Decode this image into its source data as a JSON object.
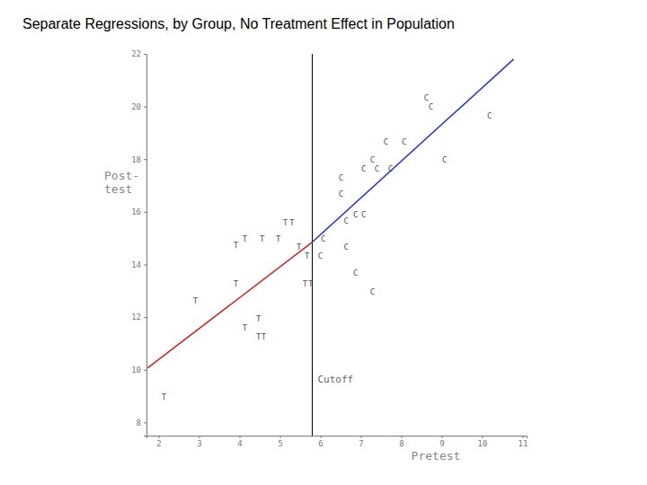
{
  "chart_data": {
    "type": "scatter",
    "title": "Separate Regressions, by Group, No Treatment Effect in Population",
    "x_label": "Pretest",
    "y_label": "Post-test",
    "xlim": [
      1.7,
      11.1
    ],
    "ylim": [
      7.5,
      22
    ],
    "xticks": [
      2,
      3,
      4,
      5,
      6,
      7,
      8,
      9,
      10,
      11
    ],
    "yticks": [
      8,
      10,
      12,
      14,
      16,
      18,
      20,
      22
    ],
    "grid": false,
    "annotations": [
      {
        "text": "Cutoff",
        "x": 5.8
      }
    ],
    "series": [
      {
        "name": "T",
        "type": "scatter",
        "marker": "letter",
        "color": "#555555",
        "x": [
          2.13,
          2.91,
          3.91,
          3.91,
          4.13,
          4.56,
          4.13,
          4.47,
          4.47,
          4.6,
          5.13,
          5.3,
          4.96,
          5.47,
          5.62,
          5.76,
          5.67
        ],
        "values": [
          8.97,
          12.63,
          13.25,
          14.72,
          14.96,
          14.96,
          11.6,
          11.95,
          11.26,
          11.26,
          15.6,
          15.6,
          14.96,
          14.68,
          13.25,
          13.25,
          14.34
        ]
      },
      {
        "name": "C",
        "type": "scatter",
        "marker": "letter",
        "color": "#555555",
        "x": [
          6.0,
          6.07,
          6.64,
          6.87,
          7.29,
          6.64,
          6.87,
          7.07,
          6.51,
          6.51,
          7.07,
          7.4,
          7.29,
          7.73,
          7.62,
          8.07,
          8.62,
          8.73,
          9.07,
          10.18
        ],
        "values": [
          14.34,
          14.96,
          14.68,
          13.66,
          12.97,
          15.64,
          15.91,
          15.91,
          16.67,
          17.28,
          17.62,
          17.62,
          17.97,
          17.62,
          18.65,
          18.65,
          20.32,
          19.98,
          17.97,
          19.64
        ]
      },
      {
        "type": "line",
        "color": "#cc2222",
        "x": [
          1.73,
          5.8
        ],
        "values": [
          10.07,
          14.85
        ]
      },
      {
        "type": "line",
        "color": "#2233cc",
        "x": [
          5.8,
          10.78
        ],
        "values": [
          14.85,
          21.8
        ]
      }
    ]
  }
}
